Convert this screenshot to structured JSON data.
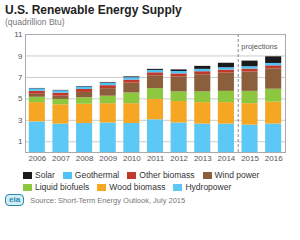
{
  "chart_data": {
    "type": "bar",
    "stacked": true,
    "title": "U.S. Renewable Energy Supply",
    "subtitle": "(quadrillion Btu)",
    "source": "Source: Short-Term Energy Outlook, July 2015",
    "x": [
      2006,
      2007,
      2008,
      2009,
      2010,
      2011,
      2012,
      2013,
      2014,
      2015,
      2016
    ],
    "xlim": [
      2005.5,
      2016.5
    ],
    "xticks": [
      2006,
      2007,
      2008,
      2009,
      2010,
      2011,
      2012,
      2013,
      2014,
      2015,
      2016
    ],
    "ylim": [
      0,
      11
    ],
    "yticks": [
      1,
      3,
      5,
      7,
      9,
      11
    ],
    "grid": true,
    "legend": "bottom",
    "series": [
      {
        "name": "Hydropower",
        "color": "#5BC8F5",
        "values": [
          2.85,
          2.65,
          2.7,
          2.75,
          2.7,
          3.05,
          2.75,
          2.65,
          2.65,
          2.55,
          2.65
        ]
      },
      {
        "name": "Wood biomass",
        "color": "#F5A623",
        "values": [
          1.8,
          1.8,
          1.8,
          1.8,
          1.85,
          1.9,
          2.0,
          2.0,
          2.0,
          2.0,
          2.05
        ]
      },
      {
        "name": "Liquid biofuels",
        "color": "#8DC63F",
        "values": [
          0.5,
          0.5,
          0.6,
          0.7,
          1.0,
          1.0,
          0.9,
          1.0,
          1.05,
          1.15,
          1.2
        ]
      },
      {
        "name": "Wind power",
        "color": "#8B5E3C",
        "values": [
          0.28,
          0.3,
          0.5,
          0.7,
          0.92,
          1.2,
          1.4,
          1.6,
          1.7,
          1.8,
          1.9
        ]
      },
      {
        "name": "Other biomass",
        "color": "#C0392B",
        "values": [
          0.28,
          0.28,
          0.28,
          0.28,
          0.28,
          0.28,
          0.28,
          0.28,
          0.28,
          0.28,
          0.28
        ]
      },
      {
        "name": "Geothermal",
        "color": "#4FC3F7",
        "values": [
          0.22,
          0.22,
          0.22,
          0.22,
          0.22,
          0.22,
          0.22,
          0.22,
          0.22,
          0.22,
          0.22
        ]
      },
      {
        "name": "Solar",
        "color": "#1A1A1A",
        "values": [
          0.04,
          0.04,
          0.05,
          0.06,
          0.08,
          0.1,
          0.15,
          0.28,
          0.42,
          0.52,
          0.62
        ]
      }
    ],
    "annotations": [
      {
        "text": "projections",
        "x": 2014.5
      },
      {
        "text": "eia"
      }
    ]
  }
}
